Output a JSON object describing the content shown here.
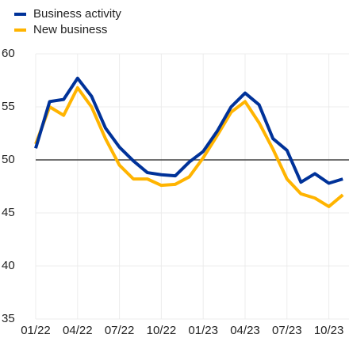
{
  "chart_data": {
    "type": "line",
    "categories": [
      "01/22",
      null,
      null,
      "04/22",
      null,
      null,
      "07/22",
      null,
      null,
      "10/22",
      null,
      null,
      "01/23",
      null,
      null,
      "04/23",
      null,
      null,
      "07/23",
      null,
      null,
      "10/23",
      null
    ],
    "series": [
      {
        "name": "Business activity",
        "color": "#003299",
        "values": [
          51.1,
          55.5,
          55.7,
          57.7,
          56.0,
          53.0,
          51.2,
          49.9,
          48.8,
          48.6,
          48.5,
          49.8,
          50.8,
          52.7,
          55.0,
          56.3,
          55.2,
          52.0,
          50.9,
          47.9,
          48.7,
          47.8,
          48.2
        ]
      },
      {
        "name": "New business",
        "color": "#ffb400",
        "values": [
          51.5,
          55.0,
          54.2,
          56.8,
          55.0,
          52.0,
          49.5,
          48.2,
          48.2,
          47.6,
          47.7,
          48.4,
          50.2,
          52.3,
          54.5,
          55.5,
          53.5,
          51.0,
          48.2,
          46.8,
          46.4,
          45.6,
          46.7
        ]
      }
    ],
    "ylim": [
      35,
      60
    ],
    "yticks": [
      35,
      40,
      45,
      50,
      55,
      60
    ],
    "reference_line": 50,
    "grid": true,
    "legend": "top-left"
  }
}
